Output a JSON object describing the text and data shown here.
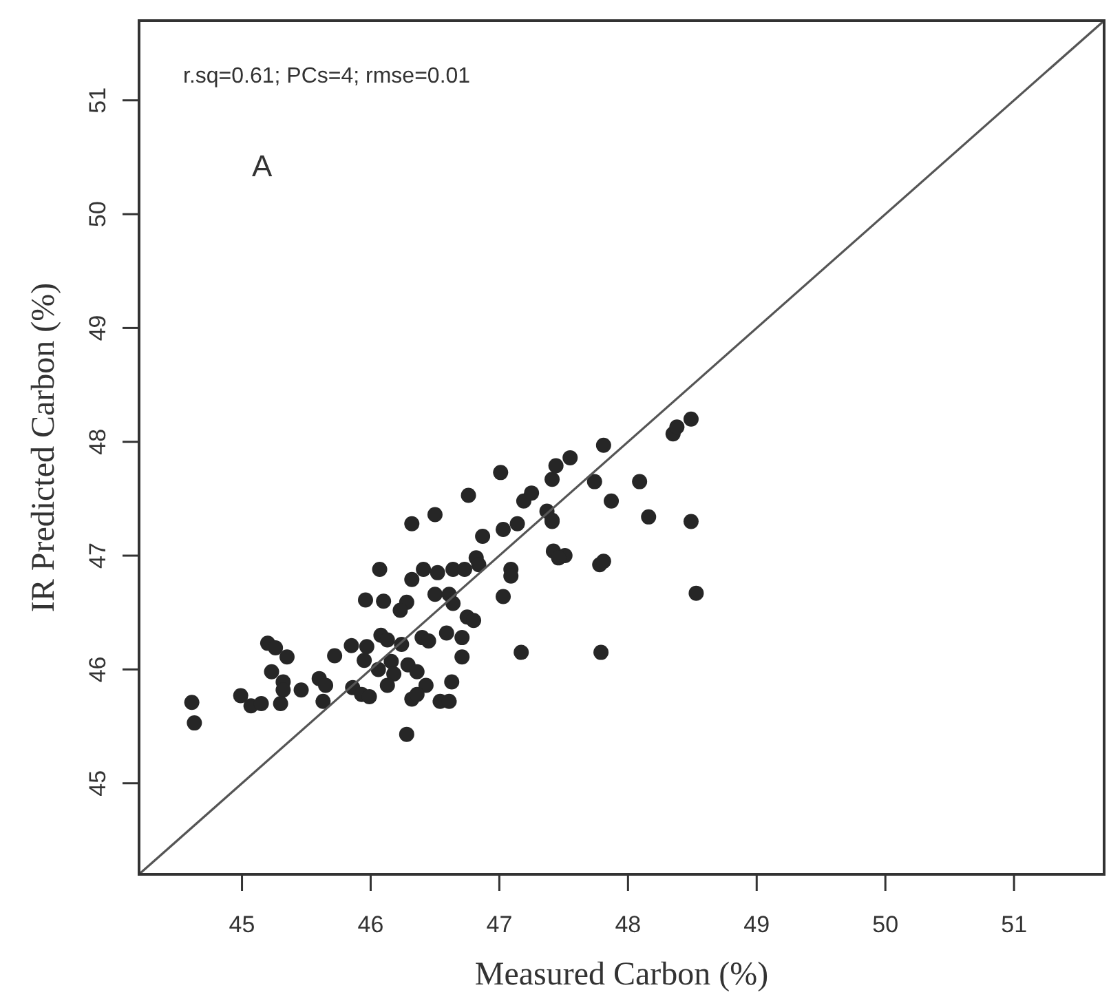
{
  "chart_data": {
    "type": "scatter",
    "xlabel": "Measured Carbon (%)",
    "ylabel": "IR Predicted Carbon (%)",
    "annotations": [
      "r.sq=0.61; PCs=4; rmse=0.01",
      "A"
    ],
    "xlim": [
      44.2,
      51.7
    ],
    "ylim": [
      44.2,
      51.7
    ],
    "xticks": [
      45,
      46,
      47,
      48,
      49,
      50,
      51
    ],
    "yticks": [
      45,
      46,
      47,
      48,
      49,
      50,
      51
    ],
    "grid": false,
    "marker": "circle",
    "series": [
      {
        "color": "#262626",
        "x": [
          44.61,
          44.63,
          46.07,
          46.41,
          46.52,
          46.32,
          46.5,
          45.96,
          46.1,
          46.28,
          46.23,
          45.2,
          45.26,
          45.35,
          45.23,
          45.32,
          45.32,
          45.46,
          44.99,
          45.07,
          45.15,
          45.3,
          45.6,
          45.65,
          45.63,
          45.72,
          45.85,
          45.97,
          46.08,
          46.13,
          46.24,
          45.95,
          46.06,
          46.16,
          46.18,
          46.29,
          46.36,
          45.86,
          45.93,
          45.99,
          46.13,
          46.43,
          46.32,
          46.54,
          46.28,
          46.59,
          46.32,
          46.87,
          47.03,
          47.14,
          47.41,
          46.64,
          46.73,
          46.82,
          46.84,
          47.09,
          47.09,
          47.42,
          47.51,
          47.46,
          47.78,
          47.81,
          46.61,
          46.64,
          47.03,
          46.75,
          46.8,
          46.71,
          46.71,
          46.4,
          46.45,
          46.63,
          46.36,
          46.61,
          47.17,
          47.79,
          47.01,
          46.76,
          46.5,
          47.19,
          47.25,
          47.41,
          47.44,
          47.55,
          47.81,
          47.74,
          47.87,
          48.09,
          48.16,
          48.35,
          48.38,
          48.49,
          48.49,
          48.53,
          47.37,
          47.41
        ],
        "values": [
          45.71,
          45.53,
          46.88,
          46.88,
          46.85,
          46.79,
          46.66,
          46.61,
          46.6,
          46.59,
          46.52,
          46.23,
          46.19,
          46.11,
          45.98,
          45.89,
          45.82,
          45.82,
          45.77,
          45.68,
          45.7,
          45.7,
          45.92,
          45.86,
          45.72,
          46.12,
          46.21,
          46.2,
          46.3,
          46.26,
          46.22,
          46.08,
          46.0,
          46.07,
          45.96,
          46.04,
          45.98,
          45.84,
          45.78,
          45.76,
          45.86,
          45.86,
          45.74,
          45.72,
          45.43,
          46.32,
          47.28,
          47.17,
          47.23,
          47.28,
          47.3,
          46.88,
          46.88,
          46.98,
          46.92,
          46.88,
          46.82,
          47.04,
          47.0,
          46.98,
          46.92,
          46.95,
          46.66,
          46.58,
          46.64,
          46.46,
          46.43,
          46.28,
          46.11,
          46.28,
          46.25,
          45.89,
          45.78,
          45.72,
          46.15,
          46.15,
          47.73,
          47.53,
          47.36,
          47.48,
          47.55,
          47.67,
          47.79,
          47.86,
          47.97,
          47.65,
          47.48,
          47.65,
          47.34,
          48.07,
          48.13,
          48.2,
          47.3,
          46.67,
          47.39,
          47.31
        ]
      },
      {
        "type": "line",
        "color": "#555555",
        "line_style": "solid",
        "marker": "none",
        "x": [
          44.2,
          51.7
        ],
        "values": [
          44.2,
          51.7
        ]
      }
    ]
  }
}
